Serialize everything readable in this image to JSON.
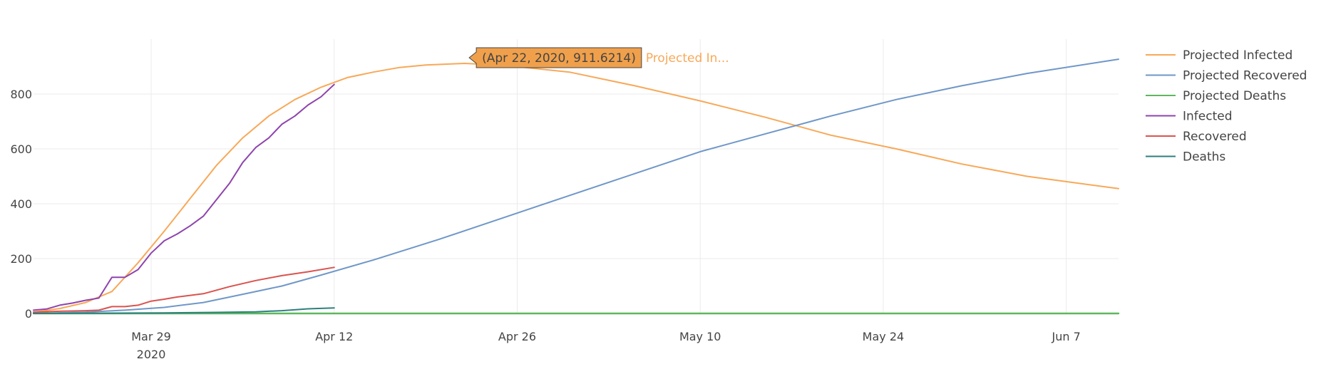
{
  "chart_data": {
    "type": "line",
    "x_type": "date",
    "xlim": [
      "2020-03-20",
      "2020-06-11"
    ],
    "ylim": [
      0,
      1000
    ],
    "y_ticks": [
      0,
      200,
      400,
      600,
      800
    ],
    "x_ticks": [
      {
        "date": "2020-03-29",
        "label": "Mar 29",
        "sublabel": "2020"
      },
      {
        "date": "2020-04-12",
        "label": "Apr 12",
        "sublabel": ""
      },
      {
        "date": "2020-04-26",
        "label": "Apr 26",
        "sublabel": ""
      },
      {
        "date": "2020-05-10",
        "label": "May 10",
        "sublabel": ""
      },
      {
        "date": "2020-05-24",
        "label": "May 24",
        "sublabel": ""
      },
      {
        "date": "2020-06-07",
        "label": "Jun 7",
        "sublabel": ""
      }
    ],
    "grid": true,
    "legend_position": "top-right",
    "series": [
      {
        "name": "Projected Infected",
        "color": "#f8a858",
        "points": [
          [
            "2020-03-20",
            5
          ],
          [
            "2020-03-22",
            18
          ],
          [
            "2020-03-24",
            40
          ],
          [
            "2020-03-26",
            80
          ],
          [
            "2020-03-28",
            185
          ],
          [
            "2020-03-30",
            300
          ],
          [
            "2020-04-01",
            420
          ],
          [
            "2020-04-03",
            540
          ],
          [
            "2020-04-05",
            640
          ],
          [
            "2020-04-07",
            720
          ],
          [
            "2020-04-09",
            780
          ],
          [
            "2020-04-11",
            825
          ],
          [
            "2020-04-13",
            860
          ],
          [
            "2020-04-15",
            880
          ],
          [
            "2020-04-17",
            897
          ],
          [
            "2020-04-19",
            906
          ],
          [
            "2020-04-22",
            911.6214
          ],
          [
            "2020-04-25",
            905
          ],
          [
            "2020-04-30",
            880
          ],
          [
            "2020-05-05",
            830
          ],
          [
            "2020-05-10",
            775
          ],
          [
            "2020-05-15",
            715
          ],
          [
            "2020-05-20",
            650
          ],
          [
            "2020-05-25",
            600
          ],
          [
            "2020-05-30",
            545
          ],
          [
            "2020-06-04",
            500
          ],
          [
            "2020-06-11",
            455
          ]
        ]
      },
      {
        "name": "Projected Recovered",
        "color": "#6f97c8",
        "points": [
          [
            "2020-03-20",
            0
          ],
          [
            "2020-03-24",
            5
          ],
          [
            "2020-03-27",
            12
          ],
          [
            "2020-03-30",
            22
          ],
          [
            "2020-04-02",
            40
          ],
          [
            "2020-04-05",
            70
          ],
          [
            "2020-04-08",
            100
          ],
          [
            "2020-04-11",
            140
          ],
          [
            "2020-04-15",
            195
          ],
          [
            "2020-04-20",
            270
          ],
          [
            "2020-04-25",
            350
          ],
          [
            "2020-04-30",
            430
          ],
          [
            "2020-05-05",
            510
          ],
          [
            "2020-05-10",
            590
          ],
          [
            "2020-05-15",
            655
          ],
          [
            "2020-05-20",
            720
          ],
          [
            "2020-05-25",
            780
          ],
          [
            "2020-05-30",
            830
          ],
          [
            "2020-06-04",
            875
          ],
          [
            "2020-06-11",
            927
          ]
        ]
      },
      {
        "name": "Projected Deaths",
        "color": "#5cb85c",
        "points": [
          [
            "2020-03-20",
            0
          ],
          [
            "2020-06-11",
            0
          ]
        ]
      },
      {
        "name": "Infected",
        "color": "#8e44ad",
        "points": [
          [
            "2020-03-20",
            12
          ],
          [
            "2020-03-21",
            16
          ],
          [
            "2020-03-22",
            30
          ],
          [
            "2020-03-23",
            38
          ],
          [
            "2020-03-24",
            48
          ],
          [
            "2020-03-25",
            56
          ],
          [
            "2020-03-26",
            132
          ],
          [
            "2020-03-27",
            132
          ],
          [
            "2020-03-28",
            160
          ],
          [
            "2020-03-29",
            220
          ],
          [
            "2020-03-30",
            265
          ],
          [
            "2020-03-31",
            290
          ],
          [
            "2020-04-01",
            320
          ],
          [
            "2020-04-02",
            355
          ],
          [
            "2020-04-03",
            415
          ],
          [
            "2020-04-04",
            475
          ],
          [
            "2020-04-05",
            550
          ],
          [
            "2020-04-06",
            605
          ],
          [
            "2020-04-07",
            640
          ],
          [
            "2020-04-08",
            690
          ],
          [
            "2020-04-09",
            720
          ],
          [
            "2020-04-10",
            760
          ],
          [
            "2020-04-11",
            790
          ],
          [
            "2020-04-12",
            835
          ]
        ]
      },
      {
        "name": "Recovered",
        "color": "#d9534f",
        "points": [
          [
            "2020-03-20",
            5
          ],
          [
            "2020-03-22",
            8
          ],
          [
            "2020-03-24",
            10
          ],
          [
            "2020-03-25",
            12
          ],
          [
            "2020-03-26",
            25
          ],
          [
            "2020-03-27",
            25
          ],
          [
            "2020-03-28",
            30
          ],
          [
            "2020-03-29",
            45
          ],
          [
            "2020-03-30",
            52
          ],
          [
            "2020-03-31",
            60
          ],
          [
            "2020-04-02",
            72
          ],
          [
            "2020-04-04",
            98
          ],
          [
            "2020-04-06",
            120
          ],
          [
            "2020-04-08",
            138
          ],
          [
            "2020-04-10",
            152
          ],
          [
            "2020-04-12",
            168
          ]
        ]
      },
      {
        "name": "Deaths",
        "color": "#2e7f7f",
        "points": [
          [
            "2020-03-20",
            0
          ],
          [
            "2020-03-25",
            1
          ],
          [
            "2020-03-30",
            2
          ],
          [
            "2020-04-03",
            4
          ],
          [
            "2020-04-06",
            6
          ],
          [
            "2020-04-08",
            10
          ],
          [
            "2020-04-10",
            17
          ],
          [
            "2020-04-12",
            20
          ]
        ]
      }
    ],
    "hover": {
      "date": "2020-04-22",
      "value": 911.6214,
      "text": "(Apr 22, 2020, 911.6214)",
      "series_label": "Projected In...",
      "bg_color": "#f0a04b",
      "border_color": "#444444",
      "series_color": "#f8a858"
    }
  }
}
